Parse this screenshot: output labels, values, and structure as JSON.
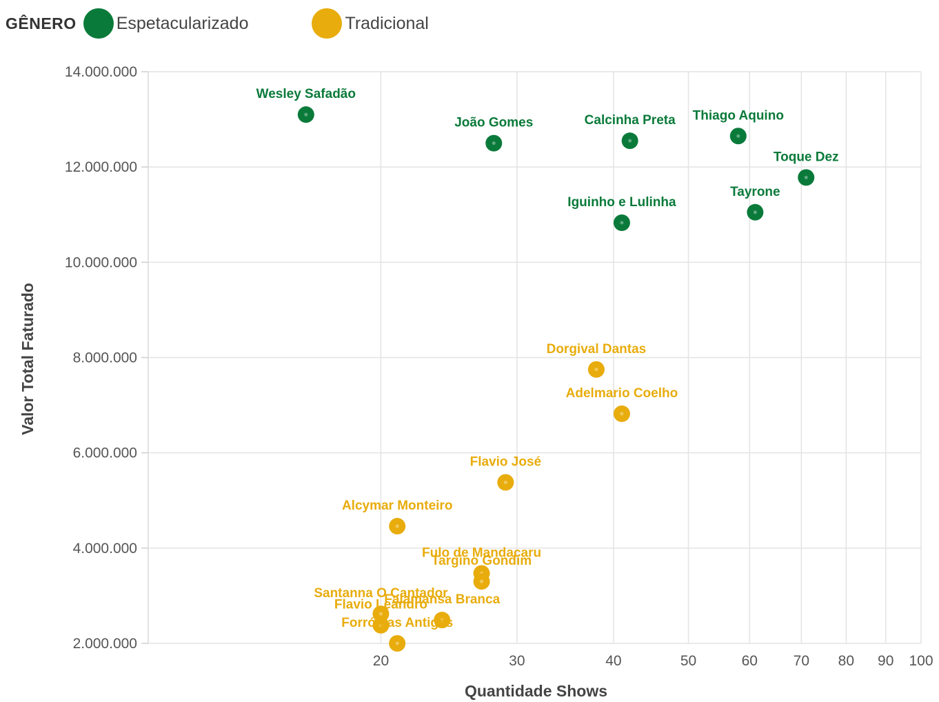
{
  "chart_data": {
    "type": "scatter",
    "xscale": "log",
    "xlabel": "Quantidade Shows",
    "ylabel": "Valor Total Faturado",
    "xlim": [
      10,
      100
    ],
    "ylim": [
      2000000,
      14000000
    ],
    "xticks": [
      20,
      30,
      40,
      50,
      60,
      70,
      80,
      90,
      100
    ],
    "xtick_labels": [
      "20",
      "30",
      "40",
      "50",
      "60",
      "70",
      "80",
      "90",
      "100"
    ],
    "yticks": [
      2000000,
      4000000,
      6000000,
      8000000,
      10000000,
      12000000,
      14000000
    ],
    "ytick_labels": [
      "2.000.000",
      "4.000.000",
      "6.000.000",
      "8.000.000",
      "10.000.000",
      "12.000.000",
      "14.000.000"
    ],
    "grid": true,
    "legend": {
      "title": "GÊNERO",
      "position": "top-left",
      "entries": [
        {
          "name": "Espetacularizado",
          "color": "#0a7a3a"
        },
        {
          "name": "Tradicional",
          "color": "#e8ac0c"
        }
      ]
    },
    "series": [
      {
        "name": "Espetacularizado",
        "color": "#0a7a3a",
        "points": [
          {
            "label": "Wesley Safadão",
            "x": 16,
            "y": 13100000
          },
          {
            "label": "João Gomes",
            "x": 28,
            "y": 12500000
          },
          {
            "label": "Calcinha Preta",
            "x": 42,
            "y": 12550000
          },
          {
            "label": "Thiago Aquino",
            "x": 58,
            "y": 12650000
          },
          {
            "label": "Toque Dez",
            "x": 71,
            "y": 11780000
          },
          {
            "label": "Tayrone",
            "x": 61,
            "y": 11050000
          },
          {
            "label": "Iguinho e Lulinha",
            "x": 41,
            "y": 10830000
          }
        ]
      },
      {
        "name": "Tradicional",
        "color": "#e8ac0c",
        "points": [
          {
            "label": "Dorgival Dantas",
            "x": 38,
            "y": 7750000
          },
          {
            "label": "Adelmario Coelho",
            "x": 41,
            "y": 6820000
          },
          {
            "label": "Flavio José",
            "x": 29,
            "y": 5380000
          },
          {
            "label": "Alcymar Monteiro",
            "x": 21,
            "y": 4460000
          },
          {
            "label": "Fulo de Mandacaru",
            "x": 27,
            "y": 3470000
          },
          {
            "label": "Targino Gondim",
            "x": 27,
            "y": 3300000
          },
          {
            "label": "Santanna O Cantador",
            "x": 20,
            "y": 2620000
          },
          {
            "label": "Flavio Leandro",
            "x": 20,
            "y": 2380000
          },
          {
            "label": "Falamansa Branca",
            "x": 24,
            "y": 2490000
          },
          {
            "label": "Forró das Antigas",
            "x": 21,
            "y": 2000000
          }
        ]
      }
    ]
  }
}
